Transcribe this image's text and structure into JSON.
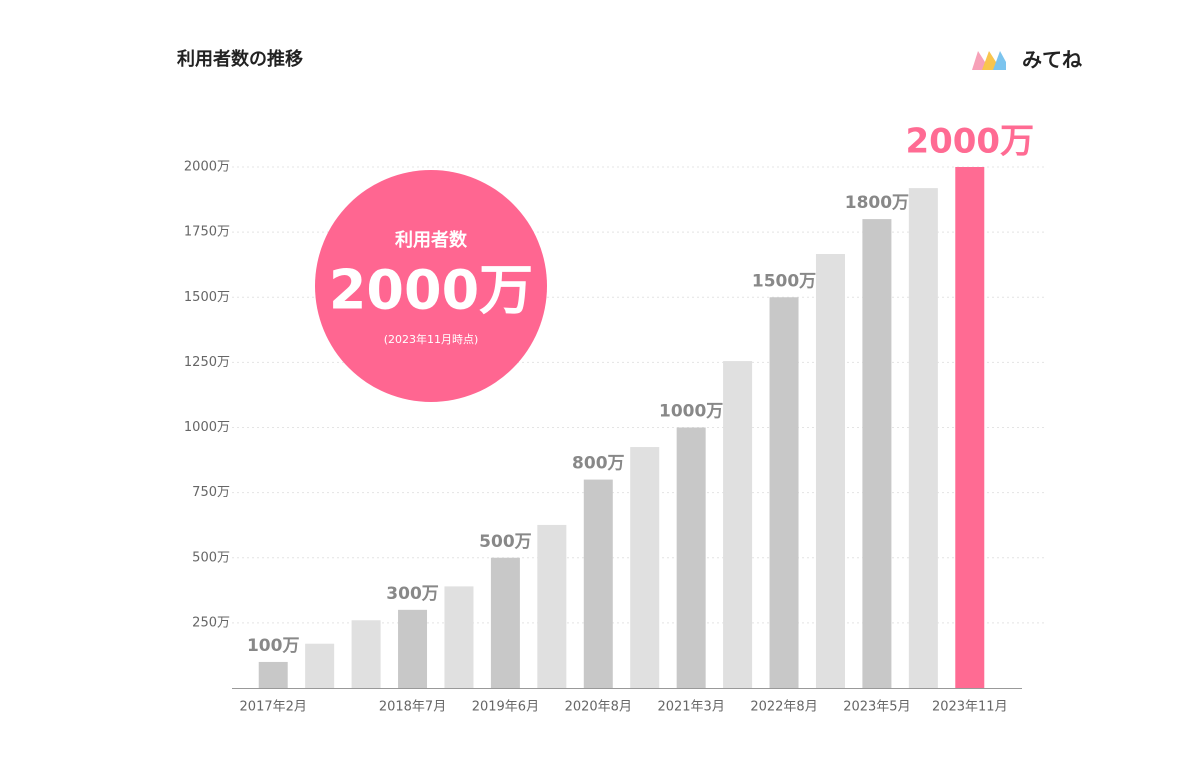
{
  "chart_data": {
    "type": "bar",
    "title": "利用者数の推移",
    "brand": "みてね",
    "categories": [
      "2017年2月",
      null,
      null,
      "2018年7月",
      null,
      "2019年6月",
      null,
      "2020年8月",
      null,
      "2021年3月",
      null,
      "2022年8月",
      null,
      "2023年5月",
      null,
      "2023年11月"
    ],
    "values": [
      100,
      170,
      260,
      300,
      390,
      500,
      626,
      800,
      925,
      1000,
      1255,
      1500,
      1666,
      1800,
      1919,
      2000
    ],
    "value_labels": [
      "100万",
      null,
      null,
      "300万",
      null,
      "500万",
      null,
      "800万",
      null,
      "1000万",
      null,
      "1500万",
      null,
      "1800万",
      null,
      "2000万"
    ],
    "colors": [
      "#c8c8c8",
      "#e0e0e0",
      "#e0e0e0",
      "#c8c8c8",
      "#e0e0e0",
      "#c8c8c8",
      "#e0e0e0",
      "#c8c8c8",
      "#e0e0e0",
      "#c8c8c8",
      "#e0e0e0",
      "#c8c8c8",
      "#e0e0e0",
      "#c8c8c8",
      "#e0e0e0",
      "#ff6b93"
    ],
    "ylim": [
      0,
      2000
    ],
    "yticks": [
      {
        "value": 250,
        "label": "250万"
      },
      {
        "value": 500,
        "label": "500万"
      },
      {
        "value": 750,
        "label": "750万"
      },
      {
        "value": 1000,
        "label": "1000万"
      },
      {
        "value": 1250,
        "label": "1250万"
      },
      {
        "value": 1500,
        "label": "1500万"
      },
      {
        "value": 1750,
        "label": "1750万"
      },
      {
        "value": 2000,
        "label": "2000万"
      }
    ],
    "grid": true,
    "annotation": {
      "label": "利用者数",
      "value_label": "2000万",
      "note": "(2023年11月時点)",
      "color": "#ff6691"
    }
  }
}
